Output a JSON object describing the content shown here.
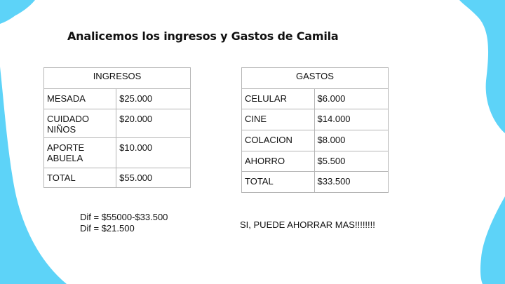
{
  "title": "Analicemos los ingresos y Gastos de Camila",
  "colors": {
    "accent": "#5dd3f8",
    "background": "#ffffff"
  },
  "ingresos": {
    "header": "INGRESOS",
    "rows": [
      {
        "label": "MESADA",
        "value": "$25.000"
      },
      {
        "label": "CUIDADO NIÑOS",
        "value": "$20.000"
      },
      {
        "label": "APORTE ABUELA",
        "value": "$10.000"
      },
      {
        "label": "TOTAL",
        "value": "$55.000"
      }
    ]
  },
  "gastos": {
    "header": "GASTOS",
    "rows": [
      {
        "label": "CELULAR",
        "value": "$6.000"
      },
      {
        "label": "CINE",
        "value": "$14.000"
      },
      {
        "label": "COLACION",
        "value": "$8.000"
      },
      {
        "label": "AHORRO",
        "value": "$5.500"
      },
      {
        "label": "TOTAL",
        "value": "$33.500"
      }
    ]
  },
  "calculation": {
    "line1": "Dif = $55000-$33.500",
    "line2": "Dif = $21.500"
  },
  "conclusion": "SI, PUEDE AHORRAR MAS!!!!!!!!"
}
